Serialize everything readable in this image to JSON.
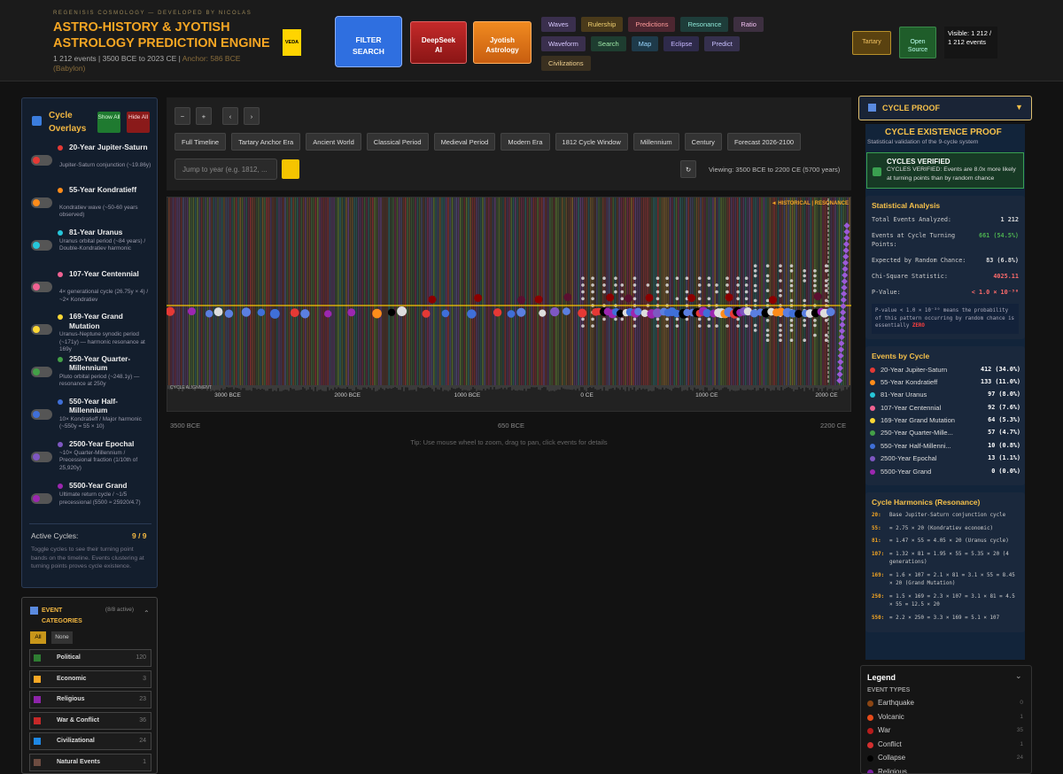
{
  "header": {
    "brand": "REGENISIS COSMOLOGY — DEVELOPED BY NICOLAS",
    "title": "ASTRO-HISTORY & JYOTISH ASTROLOGY PREDICTION ENGINE",
    "stats": "1 212 events | 3500 BCE to 2023 CE |",
    "anchor": "Anchor: 586 BCE (Babylon)",
    "veda": "VEDA",
    "filter": "FILTER SEARCH",
    "deepseek": "DeepSeek AI",
    "jyotish": "Jyotish Astrology",
    "tool_rows": [
      [
        "Waves",
        "Rulership",
        "Predictions",
        "Resonance",
        "Ratio"
      ],
      [
        "Waveform",
        "Search",
        "Map",
        "Eclipse",
        "Predict"
      ],
      [
        "Civilizations"
      ]
    ],
    "tartary": "Tartary",
    "open_source": "Open Source",
    "visible": "Visible: 1 212 / 1 212 events"
  },
  "cycle_overlays": {
    "title": "Cycle Overlays",
    "show_all": "Show All",
    "hide_all": "Hide All",
    "cycles": [
      {
        "name": "20-Year Jupiter-Saturn",
        "desc": "Jupiter-Saturn conjunction (~19.86y)",
        "color": "#e53935"
      },
      {
        "name": "55-Year Kondratieff",
        "desc": "Kondratiev wave (~50-60 years observed)",
        "color": "#ff8c1a"
      },
      {
        "name": "81-Year Uranus",
        "desc": "Uranus orbital period (~84 years) / Double-Kondratiev harmonic",
        "color": "#26c6da"
      },
      {
        "name": "107-Year Centennial",
        "desc": "4× generational cycle (26.75y × 4) / ~2× Kondratiev",
        "color": "#f06292"
      },
      {
        "name": "169-Year Grand Mutation",
        "desc": "Uranus-Neptune synodic period (~171y) — harmonic resonance at 169y",
        "color": "#fdd835"
      },
      {
        "name": "250-Year Quarter-Millennium",
        "desc": "Pluto orbital period (~248.1y) — resonance at 250y",
        "color": "#43a047"
      },
      {
        "name": "550-Year Half-Millennium",
        "desc": "10× Kondratieff / Major harmonic (~550y = 55 × 10)",
        "color": "#3f6fd8"
      },
      {
        "name": "2500-Year Epochal",
        "desc": "~10× Quarter-Millennium / Precessional fraction (1/10th of 25,920y)",
        "color": "#7e57c2"
      },
      {
        "name": "5500-Year Grand",
        "desc": "Ultimate return cycle / ~1/5 precessional (5500 ≈ 25920/4.7)",
        "color": "#9c27b0"
      }
    ],
    "active_label": "Active Cycles:",
    "active_value": "9 / 9",
    "note": "Toggle cycles to see their turning point bands on the timeline. Events clustering at turning points proves cycle existence."
  },
  "event_categories": {
    "title": "EVENT CATEGORIES",
    "count": "(8/8 active)",
    "all": "All",
    "none": "None",
    "items": [
      {
        "name": "Political",
        "count": "120",
        "color": "#2e7d32"
      },
      {
        "name": "Economic",
        "count": "3",
        "color": "#f9a825"
      },
      {
        "name": "Religious",
        "count": "23",
        "color": "#8e24aa"
      },
      {
        "name": "War & Conflict",
        "count": "36",
        "color": "#c62828"
      },
      {
        "name": "Civilizational",
        "count": "24",
        "color": "#1e88e5"
      },
      {
        "name": "Natural Events",
        "count": "1",
        "color": "#6d4c41"
      }
    ]
  },
  "timeline": {
    "ranges": [
      "Full Timeline",
      "Tartary Anchor Era",
      "Ancient World",
      "Classical Period",
      "Medieval Period",
      "Modern Era",
      "1812 Cycle Window",
      "Millennium",
      "Century",
      "Forecast 2026-2100"
    ],
    "jump_placeholder": "Jump to year (e.g. 1812, ...",
    "viewing": "Viewing: 3500 BCE to 2200 CE (5700 years)",
    "marker": "◄ HISTORICAL | RESONANCE",
    "alignment": "CYCLE ALIGNMENT",
    "axis_labels": [
      "3000 BCE",
      "2000 BCE",
      "1000 BCE",
      "0 CE",
      "1000 CE",
      "2000 CE"
    ],
    "start": "3500 BCE",
    "middle": "650 BCE",
    "end": "2200 CE",
    "tip": "Tip: Use mouse wheel to zoom, drag to pan, click events for details"
  },
  "proof": {
    "header": "CYCLE PROOF",
    "title": "CYCLE EXISTENCE PROOF",
    "subtitle": "Statistical validation of the 9-cycle system",
    "verified_title": "CYCLES VERIFIED",
    "verified_text": "CYCLES VERIFIED: Events are 8.0x more likely at turning points than by random chance",
    "stats_title": "Statistical Analysis",
    "stats": [
      [
        "Total Events Analyzed:",
        "1 212"
      ],
      [
        "Events at Cycle Turning Points:",
        "661 (54.5%)"
      ],
      [
        "Expected by Random Chance:",
        "83 (6.8%)"
      ],
      [
        "Chi-Square Statistic:",
        "4025.11"
      ],
      [
        "P-Value:",
        "< 1.0 × 10⁻³⁰"
      ]
    ],
    "p_note": "P-value < 1.0 × 10⁻³⁰ means the probability of this pattern occurring by random chance is essentially",
    "p_zero": "ZERO",
    "by_cycle_title": "Events by Cycle",
    "by_cycle": [
      [
        "20-Year Jupiter-Saturn",
        "412 (34.0%)",
        "#e53935"
      ],
      [
        "55-Year Kondratieff",
        "133 (11.0%)",
        "#ff8c1a"
      ],
      [
        "81-Year Uranus",
        "97 (8.0%)",
        "#26c6da"
      ],
      [
        "107-Year Centennial",
        "92 (7.6%)",
        "#f06292"
      ],
      [
        "169-Year Grand Mutation",
        "64 (5.3%)",
        "#fdd835"
      ],
      [
        "250-Year Quarter-Mille...",
        "57 (4.7%)",
        "#43a047"
      ],
      [
        "550-Year Half-Millenni...",
        "10 (0.8%)",
        "#3f6fd8"
      ],
      [
        "2500-Year Epochal",
        "13 (1.1%)",
        "#7e57c2"
      ],
      [
        "5500-Year Grand",
        "0 (0.0%)",
        "#9c27b0"
      ]
    ],
    "harmonics_title": "Cycle Harmonics (Resonance)",
    "harmonics": [
      [
        "20:",
        "Base Jupiter-Saturn conjunction cycle"
      ],
      [
        "55:",
        "= 2.75 × 20 (Kondratiev economic)"
      ],
      [
        "81:",
        "= 1.47 × 55 = 4.05 × 20 (Uranus cycle)"
      ],
      [
        "107:",
        "= 1.32 × 81 = 1.95 × 55 = 5.35 × 20 (4 generations)"
      ],
      [
        "169:",
        "= 1.6 × 107 = 2.1 × 81 = 3.1 × 55 = 8.45 × 20 (Grand Mutation)"
      ],
      [
        "250:",
        "= 1.5 × 169 = 2.3 × 107 = 3.1 × 81 = 4.5 × 55 = 12.5 × 20"
      ],
      [
        "550:",
        "= 2.2 × 250 = 3.3 × 169 = 5.1 × 107"
      ]
    ]
  },
  "legend": {
    "title": "Legend",
    "subtitle": "EVENT TYPES",
    "items": [
      {
        "name": "Earthquake",
        "count": "0",
        "color": "#8b4513"
      },
      {
        "name": "Volcanic",
        "count": "1",
        "color": "#e64a19"
      },
      {
        "name": "War",
        "count": "35",
        "color": "#b71c1c"
      },
      {
        "name": "Conflict",
        "count": "1",
        "color": "#d32f2f"
      },
      {
        "name": "Collapse",
        "count": "24",
        "color": "#000000"
      },
      {
        "name": "Religious",
        "count": null,
        "color": "#7b1fa2"
      }
    ]
  }
}
